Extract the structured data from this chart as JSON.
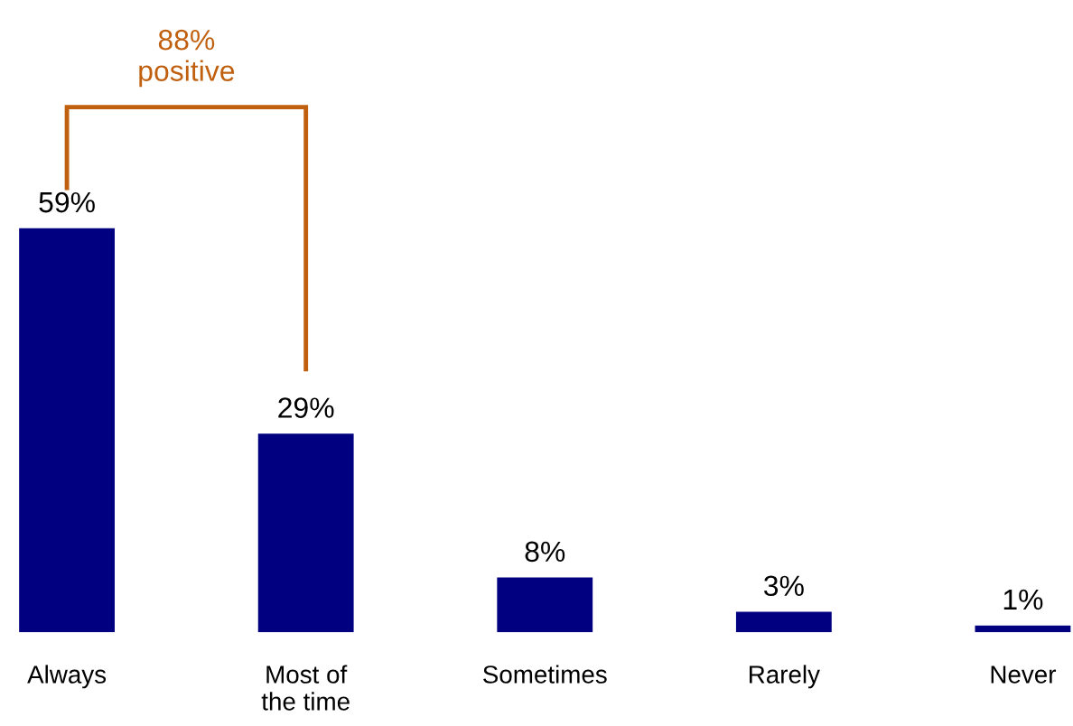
{
  "chart_data": {
    "type": "bar",
    "categories": [
      "Always",
      "Most of the time",
      "Sometimes",
      "Rarely",
      "Never"
    ],
    "values": [
      59,
      29,
      8,
      3,
      1
    ],
    "color": "#000080",
    "value_labels": [
      "59%",
      "29%",
      "8%",
      "3%",
      "1%"
    ],
    "annotations": [
      "88%\npositive"
    ]
  }
}
